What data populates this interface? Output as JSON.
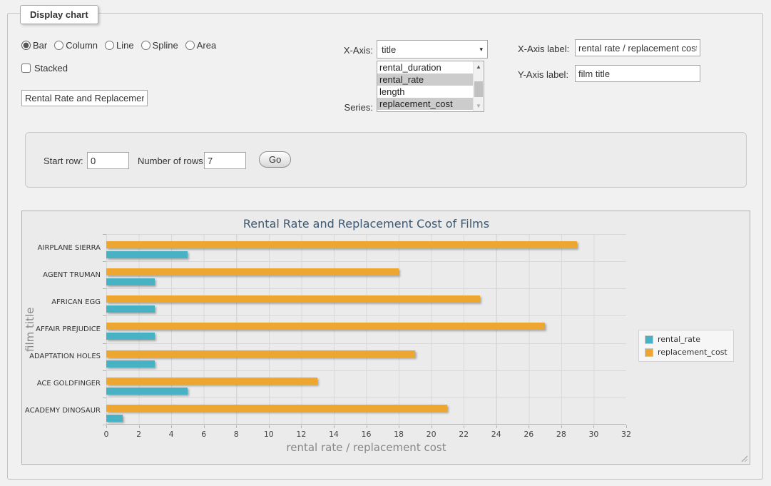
{
  "panel": {
    "legend": "Display chart"
  },
  "controls": {
    "chart_types": [
      {
        "label": "Bar",
        "selected": true
      },
      {
        "label": "Column",
        "selected": false
      },
      {
        "label": "Line",
        "selected": false
      },
      {
        "label": "Spline",
        "selected": false
      },
      {
        "label": "Area",
        "selected": false
      }
    ],
    "stacked": {
      "label": "Stacked",
      "checked": false
    },
    "title_input": {
      "value": "Rental Rate and Replacement Cost of Films"
    },
    "x_axis": {
      "label": "X-Axis:",
      "selected_value": "title",
      "arrow_icon": "▾"
    },
    "series": {
      "label": "Series:",
      "options": [
        {
          "label": "rental_duration",
          "selected": false
        },
        {
          "label": "rental_rate",
          "selected": true
        },
        {
          "label": "length",
          "selected": false
        },
        {
          "label": "replacement_cost",
          "selected": true
        }
      ],
      "scrollbar": {
        "up_icon": "▲",
        "down_icon": "▼"
      }
    },
    "x_axis_label": {
      "label": "X-Axis label:",
      "value": "rental rate / replacement cost"
    },
    "y_axis_label": {
      "label": "Y-Axis label:",
      "value": "film title"
    }
  },
  "row_controls": {
    "start_row_label": "Start row:",
    "start_row_value": "0",
    "num_rows_label": "Number of rows:",
    "num_rows_value": "7",
    "go_label": "Go"
  },
  "chart_data": {
    "type": "bar",
    "title": "Rental Rate and Replacement Cost of Films",
    "xlabel": "rental rate / replacement cost",
    "ylabel": "film title",
    "categories": [
      "AIRPLANE SIERRA",
      "AGENT TRUMAN",
      "AFRICAN EGG",
      "AFFAIR PREJUDICE",
      "ADAPTATION HOLES",
      "ACE GOLDFINGER",
      "ACADEMY DINOSAUR"
    ],
    "series": [
      {
        "name": "rental_rate",
        "color": "#47B2C4",
        "values": [
          4.99,
          2.99,
          2.99,
          2.99,
          2.99,
          4.99,
          0.99
        ]
      },
      {
        "name": "replacement_cost",
        "color": "#EDA62F",
        "values": [
          28.99,
          17.99,
          22.99,
          26.99,
          18.99,
          12.99,
          20.99
        ]
      }
    ],
    "xlim": [
      0,
      32
    ],
    "x_ticks": [
      0,
      2,
      4,
      6,
      8,
      10,
      12,
      14,
      16,
      18,
      20,
      22,
      24,
      26,
      28,
      30,
      32
    ],
    "grid": true,
    "legend_position": "right",
    "draw_order_top_to_bottom": [
      "replacement_cost",
      "rental_rate"
    ]
  }
}
